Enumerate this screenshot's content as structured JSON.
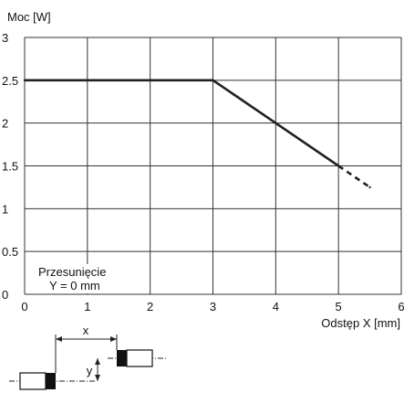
{
  "chart_data": {
    "type": "line",
    "title": "",
    "ylabel": "Moc [W]",
    "xlabel": "Odstęp X [mm]",
    "xlim": [
      0,
      6
    ],
    "ylim": [
      0,
      3
    ],
    "x_ticks": [
      "0",
      "1",
      "2",
      "3",
      "4",
      "5",
      "6"
    ],
    "y_ticks": [
      "0",
      "0.5",
      "1",
      "1.5",
      "2",
      "2.5",
      "3"
    ],
    "grid": true,
    "series": [
      {
        "line_style": "solid",
        "points": [
          [
            0,
            2.5
          ],
          [
            3,
            2.5
          ],
          [
            5,
            1.5
          ]
        ]
      },
      {
        "line_style": "dashed",
        "points": [
          [
            5,
            1.5
          ],
          [
            5.5,
            1.25
          ]
        ]
      }
    ],
    "annotation": {
      "line1": "Przesunięcie",
      "line2": "Y = 0 mm"
    }
  },
  "diagram": {
    "x_label": "x",
    "y_label": "y"
  },
  "colors": {
    "line": "#222222",
    "grid": "#333333",
    "sensor_body": "#ffffff",
    "sensor_face": "#111111"
  }
}
